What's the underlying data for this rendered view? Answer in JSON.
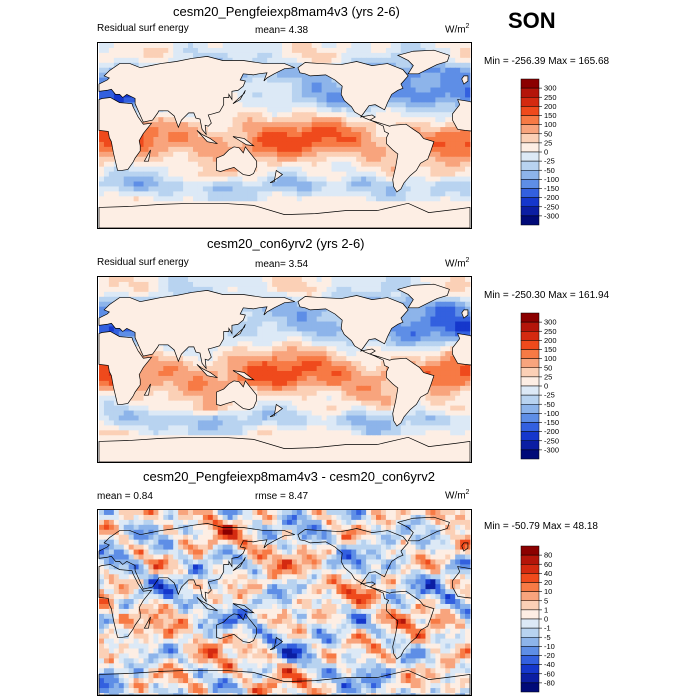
{
  "season": "SON",
  "units_base": "W/m",
  "units_exp": "2",
  "panels": [
    {
      "title": "cesm20_Pengfeiexp8mam4v3 (yrs 2-6)",
      "left_label": "Residual surf energy",
      "mean_text": "mean=  4.38",
      "minmax": "Min = -256.39 Max = 165.68"
    },
    {
      "title": "cesm20_con6yrv2 (yrs 2-6)",
      "left_label": "Residual surf energy",
      "mean_text": "mean=  3.54",
      "minmax": "Min = -250.30 Max = 161.94"
    },
    {
      "title": "cesm20_Pengfeiexp8mam4v3 - cesm20_con6yrv2",
      "left_label": "mean =  0.84",
      "mean_text": "rmse =  8.47",
      "minmax": "Min = -50.79 Max = 48.18"
    }
  ],
  "chart_data": [
    {
      "type": "heatmap",
      "title": "cesm20_Pengfeiexp8mam4v3 (yrs 2-6)",
      "variable": "Residual surf energy",
      "mean": 4.38,
      "min": -256.39,
      "max": 165.68,
      "colorbar_levels": [
        "300",
        "250",
        "200",
        "150",
        "100",
        "50",
        "25",
        "0",
        "-25",
        "-50",
        "-100",
        "-150",
        "-200",
        "-250",
        "-300"
      ],
      "colorbar_colors": [
        "#8b0000",
        "#b4150a",
        "#d42a10",
        "#ef4a1c",
        "#f77a45",
        "#f8a47d",
        "#fbd0b6",
        "#fdeee4",
        "#dce9f6",
        "#b8d3f0",
        "#8db4ea",
        "#5e8ee6",
        "#3360df",
        "#1537cc",
        "#0b1ea3",
        "#000a78"
      ]
    },
    {
      "type": "heatmap",
      "title": "cesm20_con6yrv2 (yrs 2-6)",
      "variable": "Residual surf energy",
      "mean": 3.54,
      "min": -250.3,
      "max": 161.94,
      "colorbar_levels": [
        "300",
        "250",
        "200",
        "150",
        "100",
        "50",
        "25",
        "0",
        "-25",
        "-50",
        "-100",
        "-150",
        "-200",
        "-250",
        "-300"
      ],
      "colorbar_colors": [
        "#8b0000",
        "#b4150a",
        "#d42a10",
        "#ef4a1c",
        "#f77a45",
        "#f8a47d",
        "#fbd0b6",
        "#fdeee4",
        "#dce9f6",
        "#b8d3f0",
        "#8db4ea",
        "#5e8ee6",
        "#3360df",
        "#1537cc",
        "#0b1ea3",
        "#000a78"
      ]
    },
    {
      "type": "heatmap",
      "title": "cesm20_Pengfeiexp8mam4v3 - cesm20_con6yrv2",
      "mean": 0.84,
      "rmse": 8.47,
      "min": -50.79,
      "max": 48.18,
      "colorbar_levels": [
        "80",
        "60",
        "40",
        "20",
        "10",
        "5",
        "1",
        "0",
        "-1",
        "-5",
        "-10",
        "-20",
        "-40",
        "-60",
        "-80"
      ],
      "colorbar_colors": [
        "#8b0000",
        "#b4150a",
        "#d42a10",
        "#ef4a1c",
        "#f77a45",
        "#f8a47d",
        "#fbd0b6",
        "#fdeee4",
        "#dce9f6",
        "#b8d3f0",
        "#8db4ea",
        "#5e8ee6",
        "#3360df",
        "#1537cc",
        "#0b1ea3",
        "#000a78"
      ]
    }
  ]
}
